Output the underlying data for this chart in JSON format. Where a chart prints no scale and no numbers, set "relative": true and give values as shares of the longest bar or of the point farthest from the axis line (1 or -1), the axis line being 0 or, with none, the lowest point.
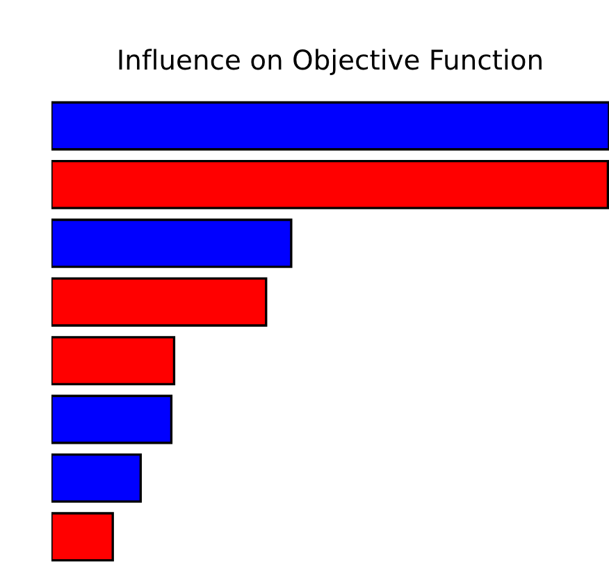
{
  "chart_data": {
    "type": "bar",
    "orientation": "horizontal",
    "relative": true,
    "title": "Influence on Objective Function",
    "categories": [
      null,
      null,
      null,
      null,
      null,
      null,
      null,
      null
    ],
    "values": [
      1,
      0.998,
      0.43,
      0.385,
      0.22,
      0.215,
      0.16,
      0.11
    ],
    "colors": [
      "#0000ff",
      "#ff0000",
      "#0000ff",
      "#ff0000",
      "#ff0000",
      "#0000ff",
      "#0000ff",
      "#ff0000"
    ],
    "grid": false,
    "legend": false
  }
}
